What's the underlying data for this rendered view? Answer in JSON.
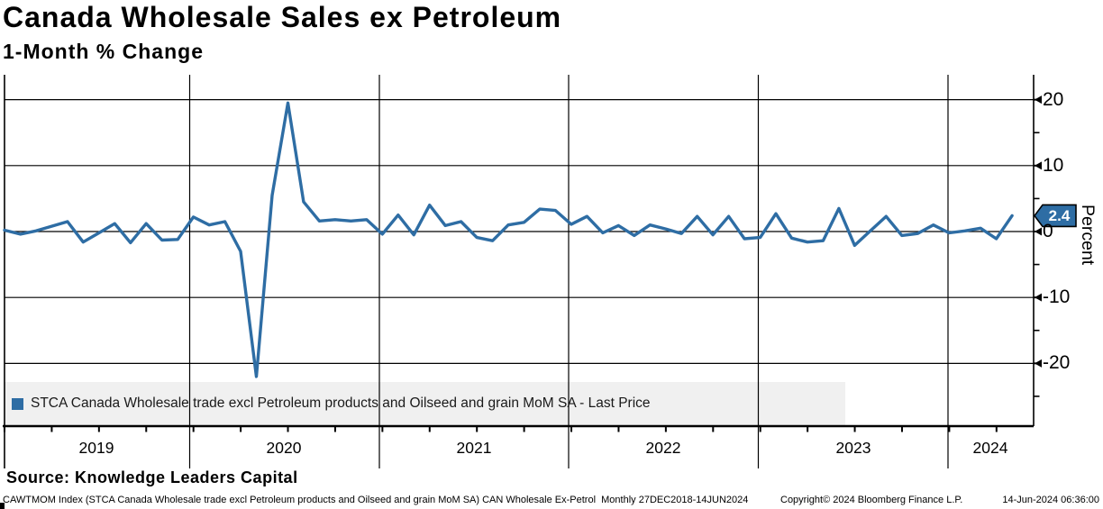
{
  "header": {
    "title": "Canada Wholesale Sales ex Petroleum",
    "subtitle": "1-Month % Change"
  },
  "chart_data": {
    "type": "line",
    "title": "Canada Wholesale Sales ex Petroleum",
    "subtitle": "1-Month % Change",
    "ylabel": "Percent",
    "ylim": [
      -29.5,
      23.8
    ],
    "yticks_major": [
      20,
      10,
      0,
      -10,
      -20
    ],
    "yticks_minor": [
      15,
      5,
      -5,
      -15,
      -25
    ],
    "xtick_years": [
      "2019",
      "2020",
      "2021",
      "2022",
      "2023",
      "2024"
    ],
    "grid": true,
    "legend_position": "bottom-left",
    "last_price": 2.4,
    "series": [
      {
        "name": "STCA Canada Wholesale trade excl Petroleum products and Oilseed and grain MoM SA - Last Price",
        "color": "#2e6da4",
        "x": [
          "2018-12",
          "2019-01",
          "2019-02",
          "2019-03",
          "2019-04",
          "2019-05",
          "2019-06",
          "2019-07",
          "2019-08",
          "2019-09",
          "2019-10",
          "2019-11",
          "2019-12",
          "2020-01",
          "2020-02",
          "2020-03",
          "2020-04",
          "2020-05",
          "2020-06",
          "2020-07",
          "2020-08",
          "2020-09",
          "2020-10",
          "2020-11",
          "2020-12",
          "2021-01",
          "2021-02",
          "2021-03",
          "2021-04",
          "2021-05",
          "2021-06",
          "2021-07",
          "2021-08",
          "2021-09",
          "2021-10",
          "2021-11",
          "2021-12",
          "2022-01",
          "2022-02",
          "2022-03",
          "2022-04",
          "2022-05",
          "2022-06",
          "2022-07",
          "2022-08",
          "2022-09",
          "2022-10",
          "2022-11",
          "2022-12",
          "2023-01",
          "2023-02",
          "2023-03",
          "2023-04",
          "2023-05",
          "2023-06",
          "2023-07",
          "2023-08",
          "2023-09",
          "2023-10",
          "2023-11",
          "2023-12",
          "2024-01",
          "2024-02",
          "2024-03",
          "2024-04"
        ],
        "values": [
          0.2,
          -0.4,
          0.1,
          0.8,
          1.5,
          -1.6,
          -0.2,
          1.2,
          -1.7,
          1.2,
          -1.3,
          -1.2,
          2.2,
          1.0,
          1.5,
          -3.0,
          -22.0,
          5.5,
          19.5,
          4.5,
          1.6,
          1.8,
          1.6,
          1.8,
          -0.4,
          2.5,
          -0.5,
          4.0,
          0.9,
          1.5,
          -0.9,
          -1.4,
          1.0,
          1.4,
          3.4,
          3.2,
          1.1,
          2.3,
          -0.2,
          0.9,
          -0.6,
          1.0,
          0.4,
          -0.3,
          2.3,
          -0.5,
          2.3,
          -1.1,
          -0.9,
          2.7,
          -1.0,
          -1.6,
          -1.4,
          3.5,
          -2.1,
          0.1,
          2.3,
          -0.6,
          -0.3,
          1.0,
          -0.2,
          0.1,
          0.5,
          -1.1,
          2.4
        ]
      }
    ]
  },
  "y_axis": {
    "ticks": [
      "20",
      "10",
      "0",
      "-10",
      "-20"
    ],
    "label": "Percent",
    "last_price_label": "2.4"
  },
  "x_axis": {
    "years": [
      "2019",
      "2020",
      "2021",
      "2022",
      "2023",
      "2024"
    ]
  },
  "legend": {
    "swatch_color": "#2e6da4",
    "label": "STCA Canada Wholesale trade excl Petroleum products and Oilseed and grain MoM SA - Last Price"
  },
  "source": {
    "text": "Source: Knowledge Leaders Capital"
  },
  "footer": {
    "left": "CAWTMOM Index (STCA Canada Wholesale trade excl Petroleum products and Oilseed and grain MoM SA) CAN Wholesale Ex-Petrol  Monthly 27DEC2018-14JUN2024",
    "copyright": "Copyright© 2024 Bloomberg Finance L.P.",
    "timestamp": "14-Jun-2024 06:36:00"
  }
}
